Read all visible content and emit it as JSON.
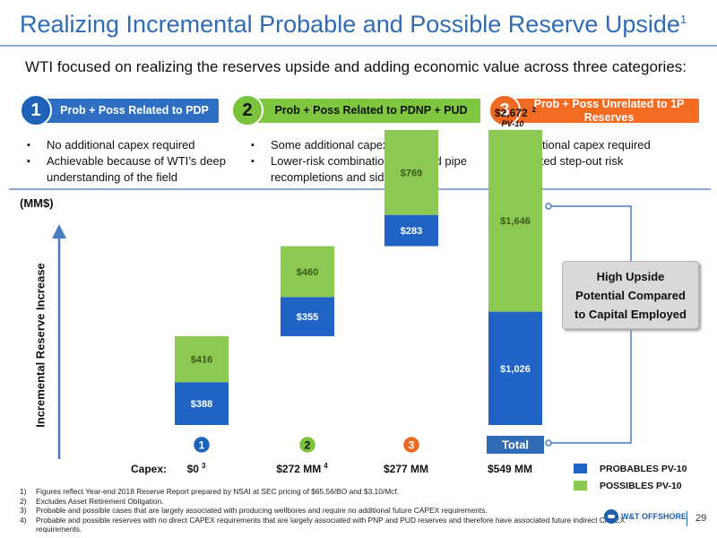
{
  "title": "Realizing Incremental Probable and Possible Reserve Upside",
  "title_sup": "1",
  "subtitle": "WTI focused on realizing the reserves upside and adding economic value across three categories:",
  "categories": [
    {
      "num": "1",
      "label": "Prob + Poss Related to PDP",
      "bullets": [
        "No additional capex required",
        "Achievable because of WTI’s deep understanding of the field"
      ]
    },
    {
      "num": "2",
      "label": "Prob + Poss Related to PDNP + PUD",
      "bullets": [
        "Some additional capex required",
        "Lower-risk combination of behind pipe recompletions and sidetracks"
      ]
    },
    {
      "num": "3",
      "label": "Prob + Poss Unrelated to 1P Reserves",
      "bullets": [
        "Additional capex required",
        "Limited step-out risk"
      ]
    }
  ],
  "unit_label": "(MM$)",
  "total_annotation": "$2,672",
  "total_annotation_sup": "2",
  "total_annotation_sub": "PV-10",
  "callout": "High Upside Potential Compared to Capital Employed",
  "capex_label": "Capex:",
  "colors": {
    "probables": "#1f63c4",
    "possibles": "#8cc953",
    "accent": "#2f6cb5"
  },
  "chart_data": {
    "type": "bar",
    "stacked": true,
    "waterfall": true,
    "ylabel": "Incremental Reserve Increase",
    "categories": [
      "1",
      "2",
      "3",
      "Total"
    ],
    "series": [
      {
        "name": "PROBABLES PV-10",
        "values": [
          388,
          355,
          283,
          1026
        ],
        "labels": [
          "$388",
          "$355",
          "$283",
          "$1,026"
        ]
      },
      {
        "name": "POSSIBLES PV-10",
        "values": [
          416,
          460,
          769,
          1646
        ],
        "labels": [
          "$416",
          "$460",
          "$769",
          "$1,646"
        ]
      }
    ],
    "capex": [
      {
        "value": "$0",
        "sup": "3"
      },
      {
        "value": "$272 MM",
        "sup": "4"
      },
      {
        "value": "$277 MM",
        "sup": ""
      },
      {
        "value": "$549 MM",
        "sup": ""
      }
    ],
    "total": 2672
  },
  "footnotes": [
    {
      "n": "1)",
      "text": "Figures reflect Year-end 2018 Reserve Report prepared by NSAI at SEC pricing of $65.56/BO and $3.10/Mcf."
    },
    {
      "n": "2)",
      "text": "Excludes Asset Retirement Obligation."
    },
    {
      "n": "3)",
      "text": "Probable and possible cases that are largely associated with producing wellbores and require no additional future CAPEX requirements."
    },
    {
      "n": "4)",
      "text": "Probable and possible reserves with no direct CAPEX requirements that are largely associated with PNP and PUD reserves and therefore have associated future indirect CAPEX requirements."
    }
  ],
  "logo_text": "W&T OFFSHORE",
  "page_number": "29"
}
